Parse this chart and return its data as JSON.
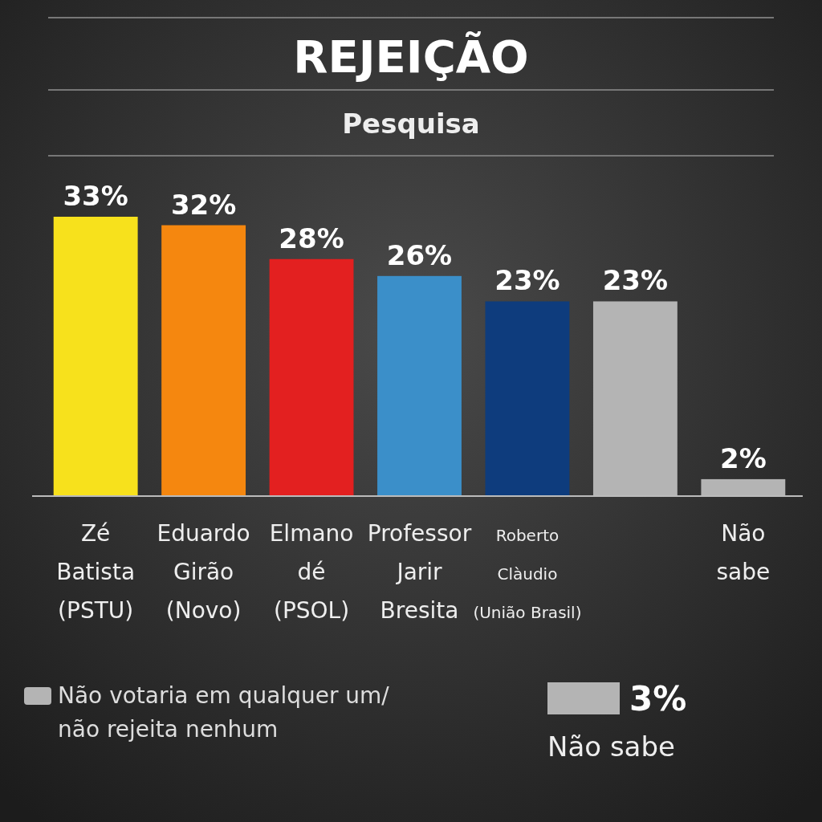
{
  "chart_data": {
    "type": "bar",
    "title": "REJEIÇÃO",
    "subtitle": "Pesquisa",
    "categories": [
      "Zé Batista (PSTU)",
      "Eduardo Girão (Novo)",
      "Elmano dé (PSOL)",
      "Professor Jarir Bresita",
      "Roberto Clàudio (União Brasil)",
      null,
      "Não sabe"
    ],
    "values": [
      33,
      32,
      28,
      26,
      23,
      23,
      2
    ],
    "colors": [
      "#f7e11c",
      "#f5870f",
      "#e32020",
      "#3b8fc9",
      "#0e3c7d",
      "#b4b4b4",
      "#b4b4b4"
    ],
    "value_labels": [
      "33%",
      "32%",
      "28%",
      "26%",
      "23%",
      "23%",
      "2%"
    ],
    "annotations": [
      "Não votaria em qualquer um/não rejeita nenhum",
      "3%",
      "Não sabe"
    ]
  }
}
